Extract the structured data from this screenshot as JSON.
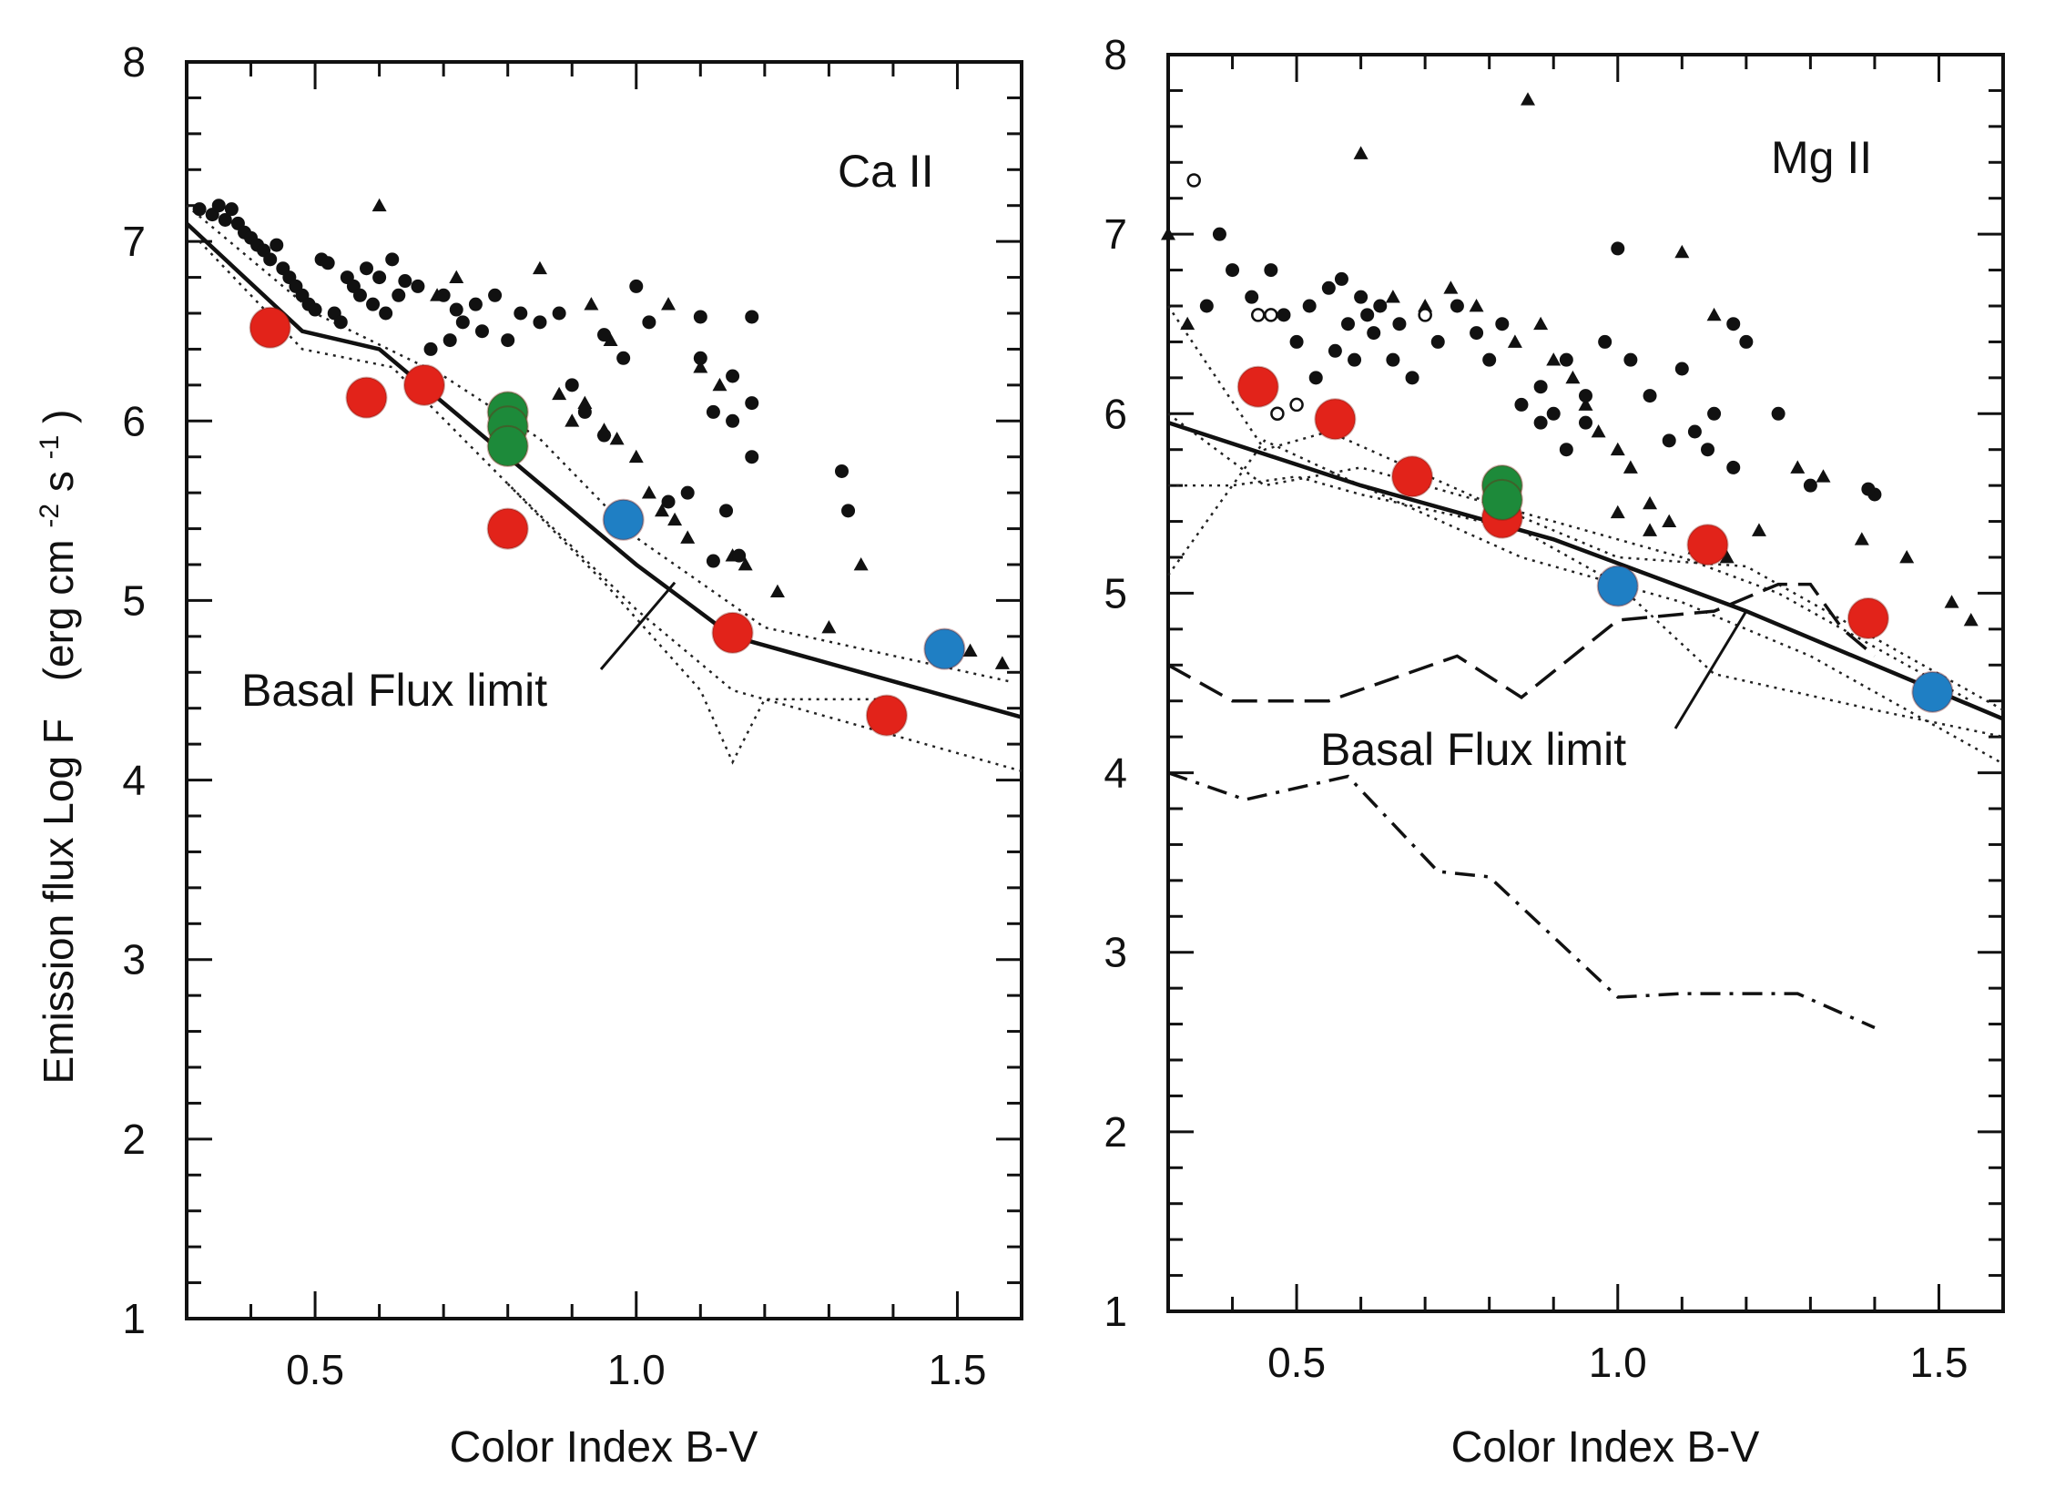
{
  "figure": {
    "ylabel_main": "Emission flux  Log F",
    "ylabel_units": "(erg cm",
    "ylabel_sup1": "-2",
    "ylabel_mid": "s",
    "ylabel_sup2": "-1",
    "ylabel_close": ")"
  },
  "chart_data": [
    {
      "type": "scatter",
      "panel_label": "Ca II",
      "xlabel": "Color Index B-V",
      "xlim": [
        0.3,
        1.6
      ],
      "ylim": [
        1,
        8
      ],
      "x_ticks": [
        0.5,
        1.0,
        1.5
      ],
      "x_tick_labels": [
        "0.5",
        "1.0",
        "1.5"
      ],
      "y_ticks": [
        1,
        2,
        3,
        4,
        5,
        6,
        7,
        8
      ],
      "y_tick_labels": [
        "1",
        "2",
        "3",
        "4",
        "5",
        "6",
        "7",
        "8"
      ],
      "annotation": "Basal Flux limit",
      "annotation_target": [
        1.06,
        5.1
      ],
      "basal_limit": {
        "x": [
          0.3,
          0.48,
          0.6,
          0.8,
          1.0,
          1.15,
          1.2,
          1.6
        ],
        "y": [
          7.1,
          6.5,
          6.4,
          5.8,
          5.2,
          4.8,
          4.75,
          4.35
        ]
      },
      "dotted_bounds": [
        {
          "x": [
            0.32,
            0.48,
            0.62,
            0.8,
            1.0,
            1.15,
            1.6
          ],
          "y": [
            7.0,
            6.4,
            6.3,
            5.65,
            4.95,
            4.5,
            4.05
          ]
        },
        {
          "x": [
            0.3,
            0.5,
            0.7,
            0.85,
            1.0,
            1.2,
            1.58
          ],
          "y": [
            7.2,
            6.6,
            6.25,
            5.9,
            5.35,
            4.85,
            4.55
          ]
        },
        {
          "x": [
            0.8,
            0.95,
            1.1,
            1.15,
            1.2,
            1.4
          ],
          "y": [
            5.65,
            5.1,
            4.5,
            4.1,
            4.45,
            4.45
          ]
        }
      ],
      "highlight_points": [
        {
          "color": "#e2231a",
          "points": [
            [
              0.43,
              6.52
            ],
            [
              0.58,
              6.13
            ],
            [
              0.67,
              6.2
            ],
            [
              0.8,
              5.4
            ],
            [
              1.15,
              4.82
            ],
            [
              1.39,
              4.36
            ]
          ]
        },
        {
          "color": "#1d8a3a",
          "points": [
            [
              0.8,
              6.05
            ],
            [
              0.8,
              5.97
            ],
            [
              0.8,
              5.86
            ]
          ]
        },
        {
          "color": "#1f7fc4",
          "points": [
            [
              0.98,
              5.45
            ],
            [
              1.48,
              4.73
            ]
          ]
        }
      ],
      "small_dots": [
        [
          0.32,
          7.18
        ],
        [
          0.34,
          7.15
        ],
        [
          0.35,
          7.2
        ],
        [
          0.36,
          7.12
        ],
        [
          0.37,
          7.18
        ],
        [
          0.38,
          7.1
        ],
        [
          0.39,
          7.05
        ],
        [
          0.4,
          7.02
        ],
        [
          0.41,
          6.98
        ],
        [
          0.42,
          6.95
        ],
        [
          0.43,
          6.9
        ],
        [
          0.44,
          6.98
        ],
        [
          0.45,
          6.85
        ],
        [
          0.46,
          6.8
        ],
        [
          0.47,
          6.75
        ],
        [
          0.48,
          6.7
        ],
        [
          0.49,
          6.65
        ],
        [
          0.5,
          6.62
        ],
        [
          0.51,
          6.9
        ],
        [
          0.52,
          6.88
        ],
        [
          0.53,
          6.6
        ],
        [
          0.54,
          6.55
        ],
        [
          0.55,
          6.8
        ],
        [
          0.56,
          6.75
        ],
        [
          0.57,
          6.7
        ],
        [
          0.58,
          6.85
        ],
        [
          0.59,
          6.65
        ],
        [
          0.6,
          6.8
        ],
        [
          0.61,
          6.6
        ],
        [
          0.62,
          6.9
        ],
        [
          0.63,
          6.7
        ],
        [
          0.64,
          6.78
        ],
        [
          0.66,
          6.75
        ],
        [
          0.68,
          6.4
        ],
        [
          0.7,
          6.7
        ],
        [
          0.71,
          6.45
        ],
        [
          0.72,
          6.62
        ],
        [
          0.73,
          6.55
        ],
        [
          0.75,
          6.65
        ],
        [
          0.76,
          6.5
        ],
        [
          0.78,
          6.7
        ],
        [
          0.8,
          6.45
        ],
        [
          0.82,
          6.6
        ],
        [
          0.85,
          6.55
        ],
        [
          0.88,
          6.6
        ],
        [
          0.95,
          6.48
        ],
        [
          0.98,
          6.35
        ],
        [
          1.0,
          6.75
        ],
        [
          1.02,
          6.55
        ],
        [
          0.9,
          6.2
        ],
        [
          0.92,
          6.05
        ],
        [
          0.95,
          5.92
        ],
        [
          1.1,
          6.58
        ],
        [
          1.18,
          6.58
        ],
        [
          1.1,
          6.35
        ],
        [
          1.15,
          6.25
        ],
        [
          1.12,
          6.05
        ],
        [
          1.15,
          6.0
        ],
        [
          1.18,
          6.1
        ],
        [
          1.18,
          5.8
        ],
        [
          1.14,
          5.5
        ],
        [
          1.32,
          5.72
        ],
        [
          1.33,
          5.5
        ],
        [
          1.16,
          5.25
        ],
        [
          1.12,
          5.22
        ],
        [
          1.08,
          5.6
        ],
        [
          1.05,
          5.55
        ]
      ],
      "triangles": [
        [
          0.6,
          7.2
        ],
        [
          0.69,
          6.7
        ],
        [
          0.72,
          6.8
        ],
        [
          0.85,
          6.85
        ],
        [
          0.93,
          6.65
        ],
        [
          0.96,
          6.45
        ],
        [
          1.05,
          6.65
        ],
        [
          1.1,
          6.3
        ],
        [
          0.88,
          6.15
        ],
        [
          0.9,
          6.0
        ],
        [
          0.92,
          6.1
        ],
        [
          0.95,
          5.95
        ],
        [
          0.97,
          5.9
        ],
        [
          1.0,
          5.8
        ],
        [
          1.02,
          5.6
        ],
        [
          1.04,
          5.5
        ],
        [
          1.06,
          5.45
        ],
        [
          1.08,
          5.35
        ],
        [
          1.13,
          6.2
        ],
        [
          1.15,
          5.25
        ],
        [
          1.17,
          5.2
        ],
        [
          1.22,
          5.05
        ],
        [
          1.3,
          4.85
        ],
        [
          1.35,
          5.2
        ],
        [
          1.52,
          4.72
        ],
        [
          1.57,
          4.65
        ]
      ]
    },
    {
      "type": "scatter",
      "panel_label": "Mg II",
      "xlabel": "Color Index B-V",
      "xlim": [
        0.3,
        1.6
      ],
      "ylim": [
        1,
        8
      ],
      "x_ticks": [
        0.5,
        1.0,
        1.5
      ],
      "x_tick_labels": [
        "0.5",
        "1.0",
        "1.5"
      ],
      "y_ticks": [
        1,
        2,
        3,
        4,
        5,
        6,
        7,
        8
      ],
      "y_tick_labels": [
        "1",
        "2",
        "3",
        "4",
        "5",
        "6",
        "7",
        "8"
      ],
      "annotation": "Basal Flux limit",
      "annotation_target": [
        1.2,
        4.9
      ],
      "basal_limit": {
        "x": [
          0.3,
          0.6,
          0.9,
          1.2,
          1.6
        ],
        "y": [
          5.95,
          5.6,
          5.3,
          4.9,
          4.3
        ]
      },
      "dotted_bounds": [
        {
          "x": [
            0.3,
            0.45,
            0.6,
            0.85,
            1.1,
            1.3,
            1.6
          ],
          "y": [
            5.1,
            5.85,
            5.6,
            5.2,
            4.95,
            4.65,
            4.05
          ]
        },
        {
          "x": [
            0.3,
            0.45,
            0.55,
            0.8,
            1.0,
            1.2,
            1.6
          ],
          "y": [
            6.6,
            5.8,
            5.9,
            5.5,
            5.2,
            5.15,
            4.35
          ]
        },
        {
          "x": [
            0.3,
            0.4,
            0.5,
            0.6,
            0.85,
            1.0,
            1.15,
            1.4,
            1.6
          ],
          "y": [
            5.6,
            5.6,
            5.65,
            5.55,
            5.35,
            5.05,
            4.55,
            4.35,
            4.2
          ]
        },
        {
          "x": [
            0.3,
            0.45,
            0.6,
            0.9,
            1.1,
            1.25,
            1.55
          ],
          "y": [
            6.0,
            5.6,
            5.7,
            5.4,
            5.2,
            5.0,
            4.4
          ]
        }
      ],
      "dashed_line": {
        "x": [
          0.3,
          0.4,
          0.55,
          0.75,
          0.85,
          1.0,
          1.15,
          1.25,
          1.3,
          1.35,
          1.4
        ],
        "y": [
          4.6,
          4.4,
          4.4,
          4.65,
          4.42,
          4.85,
          4.9,
          5.05,
          5.05,
          4.8,
          4.65
        ]
      },
      "dashdot_line": {
        "x": [
          0.3,
          0.42,
          0.58,
          0.72,
          0.8,
          1.0,
          1.1,
          1.28,
          1.4
        ],
        "y": [
          4.0,
          3.85,
          3.98,
          3.45,
          3.42,
          2.75,
          2.77,
          2.77,
          2.58
        ]
      },
      "highlight_points": [
        {
          "color": "#e2231a",
          "points": [
            [
              0.44,
              6.15
            ],
            [
              0.56,
              5.97
            ],
            [
              0.68,
              5.65
            ],
            [
              0.82,
              5.42
            ],
            [
              1.14,
              5.27
            ],
            [
              1.39,
              4.86
            ]
          ]
        },
        {
          "color": "#1d8a3a",
          "points": [
            [
              0.82,
              5.6
            ],
            [
              0.82,
              5.52
            ]
          ]
        },
        {
          "color": "#1f7fc4",
          "points": [
            [
              1.0,
              5.04
            ],
            [
              1.49,
              4.45
            ]
          ]
        }
      ],
      "small_dots": [
        [
          0.36,
          6.6
        ],
        [
          0.38,
          7.0
        ],
        [
          0.4,
          6.8
        ],
        [
          0.43,
          6.65
        ],
        [
          0.46,
          6.8
        ],
        [
          0.48,
          6.55
        ],
        [
          0.5,
          6.4
        ],
        [
          0.52,
          6.6
        ],
        [
          0.53,
          6.2
        ],
        [
          0.55,
          6.7
        ],
        [
          0.56,
          6.35
        ],
        [
          0.57,
          6.75
        ],
        [
          0.58,
          6.5
        ],
        [
          0.59,
          6.3
        ],
        [
          0.6,
          6.65
        ],
        [
          0.61,
          6.55
        ],
        [
          0.62,
          6.45
        ],
        [
          0.63,
          6.6
        ],
        [
          0.65,
          6.3
        ],
        [
          0.66,
          6.5
        ],
        [
          0.68,
          6.2
        ],
        [
          0.7,
          6.55
        ],
        [
          0.72,
          6.4
        ],
        [
          0.75,
          6.6
        ],
        [
          0.78,
          6.45
        ],
        [
          0.8,
          6.3
        ],
        [
          0.82,
          6.5
        ],
        [
          0.85,
          6.05
        ],
        [
          0.88,
          6.15
        ],
        [
          0.9,
          6.0
        ],
        [
          0.92,
          6.3
        ],
        [
          0.95,
          6.1
        ],
        [
          0.98,
          6.4
        ],
        [
          1.0,
          6.92
        ],
        [
          1.02,
          6.3
        ],
        [
          1.05,
          6.1
        ],
        [
          1.08,
          5.85
        ],
        [
          1.1,
          6.25
        ],
        [
          1.12,
          5.9
        ],
        [
          1.15,
          6.0
        ],
        [
          1.18,
          5.7
        ],
        [
          1.2,
          6.4
        ],
        [
          1.25,
          6.0
        ],
        [
          1.3,
          5.6
        ],
        [
          1.18,
          6.5
        ],
        [
          1.14,
          5.8
        ],
        [
          1.4,
          5.55
        ],
        [
          1.39,
          5.58
        ],
        [
          0.88,
          5.95
        ],
        [
          0.92,
          5.8
        ],
        [
          0.95,
          5.95
        ]
      ],
      "triangles": [
        [
          0.86,
          7.75
        ],
        [
          0.6,
          7.45
        ],
        [
          0.3,
          7.0
        ],
        [
          0.33,
          6.5
        ],
        [
          0.65,
          6.65
        ],
        [
          0.7,
          6.6
        ],
        [
          0.74,
          6.7
        ],
        [
          0.78,
          6.6
        ],
        [
          0.84,
          6.4
        ],
        [
          0.88,
          6.5
        ],
        [
          0.9,
          6.3
        ],
        [
          0.93,
          6.2
        ],
        [
          0.95,
          6.05
        ],
        [
          0.97,
          5.9
        ],
        [
          1.0,
          5.8
        ],
        [
          1.02,
          5.7
        ],
        [
          1.05,
          5.5
        ],
        [
          1.08,
          5.4
        ],
        [
          1.12,
          5.25
        ],
        [
          1.15,
          6.55
        ],
        [
          1.17,
          5.2
        ],
        [
          1.1,
          6.9
        ],
        [
          1.22,
          5.35
        ],
        [
          1.28,
          5.7
        ],
        [
          1.32,
          5.65
        ],
        [
          1.38,
          5.3
        ],
        [
          1.45,
          5.2
        ],
        [
          1.52,
          4.95
        ],
        [
          1.55,
          4.85
        ],
        [
          1.0,
          5.45
        ],
        [
          1.05,
          5.35
        ]
      ],
      "open_circles": [
        [
          0.34,
          7.3
        ],
        [
          0.44,
          6.55
        ],
        [
          0.46,
          6.55
        ],
        [
          0.47,
          6.0
        ],
        [
          0.5,
          6.05
        ],
        [
          0.7,
          6.55
        ]
      ]
    }
  ]
}
